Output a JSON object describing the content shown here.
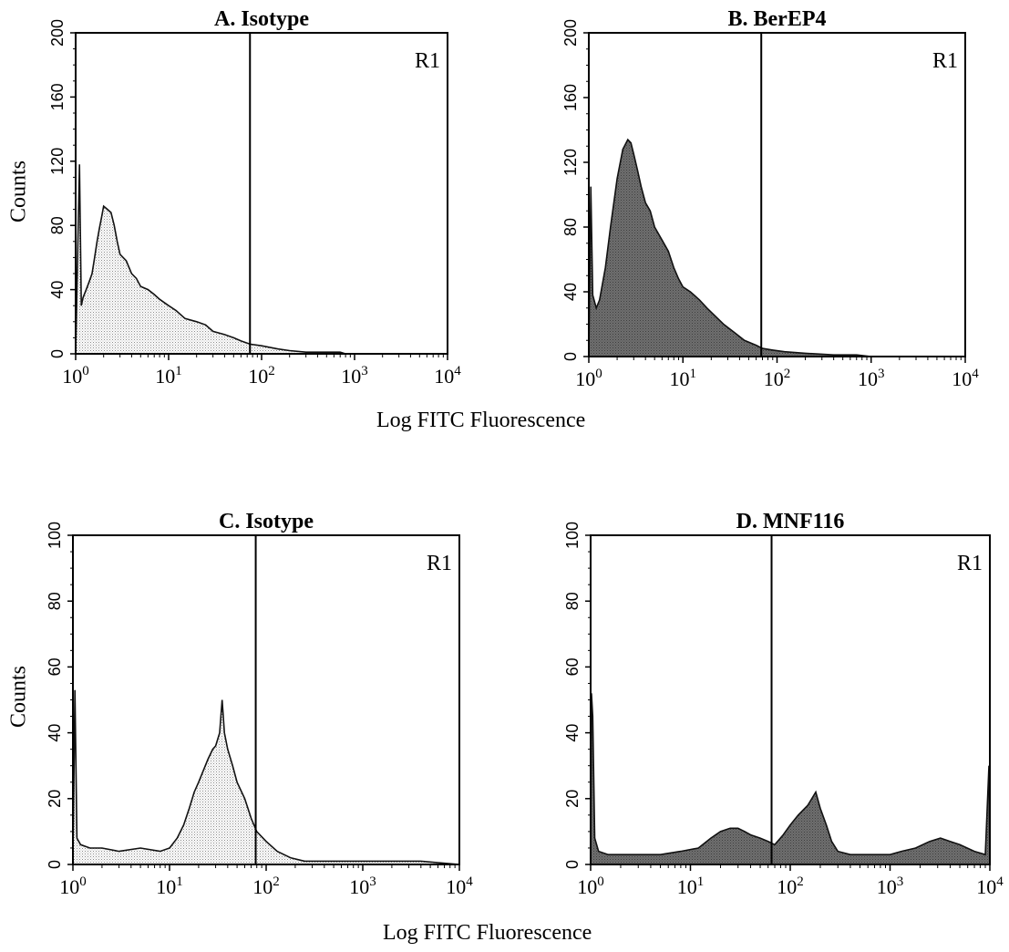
{
  "figure": {
    "xlabel_top": "Log FITC Fluorescence",
    "xlabel_bottom": "Log FITC Fluorescence"
  },
  "chart_data": [
    {
      "type": "area",
      "title": "A. Isotype",
      "ylabel": "Counts",
      "xlabel": "",
      "x_scale": "log",
      "xlim": [
        1,
        10000
      ],
      "ylim": [
        0,
        200
      ],
      "yticks": [
        0,
        40,
        80,
        120,
        160,
        200
      ],
      "xtick_labels": [
        "10^0",
        "10^1",
        "10^2",
        "10^3",
        "10^4"
      ],
      "region_label": "R1",
      "gate_x": 75,
      "fill": "light",
      "series": [
        {
          "x": [
            1.0,
            1.1,
            1.15,
            1.2,
            1.3,
            1.4,
            1.5,
            1.6,
            1.7,
            1.8,
            1.9,
            2.0,
            2.2,
            2.4,
            2.6,
            2.8,
            3.0,
            3.5,
            4.0,
            4.5,
            5.0,
            6.0,
            7.0,
            8.0,
            10,
            12,
            15,
            20,
            25,
            30,
            40,
            50,
            60,
            75,
            100,
            150,
            200,
            300,
            500,
            700,
            800,
            1000,
            2000,
            5000,
            10000
          ],
          "y": [
            0,
            118,
            30,
            35,
            40,
            45,
            50,
            60,
            70,
            78,
            85,
            92,
            90,
            88,
            80,
            70,
            62,
            58,
            50,
            47,
            42,
            40,
            37,
            34,
            30,
            27,
            22,
            20,
            18,
            14,
            12,
            10,
            8,
            6,
            5,
            3,
            2,
            1,
            1,
            1,
            0,
            0,
            0,
            0,
            0
          ]
        }
      ]
    },
    {
      "type": "area",
      "title": "B. BerEP4",
      "ylabel": "",
      "xlabel": "",
      "x_scale": "log",
      "xlim": [
        1,
        10000
      ],
      "ylim": [
        0,
        200
      ],
      "yticks": [
        0,
        40,
        80,
        120,
        160,
        200
      ],
      "xtick_labels": [
        "10^0",
        "10^1",
        "10^2",
        "10^3",
        "10^4"
      ],
      "region_label": "R1",
      "gate_x": 68,
      "fill": "dark",
      "series": [
        {
          "x": [
            1.0,
            1.05,
            1.1,
            1.2,
            1.3,
            1.5,
            1.7,
            2.0,
            2.3,
            2.6,
            2.8,
            3.0,
            3.3,
            3.6,
            4.0,
            4.5,
            5.0,
            6.0,
            7.0,
            8.0,
            9.0,
            10,
            12,
            15,
            18,
            22,
            27,
            35,
            45,
            60,
            70,
            90,
            120,
            200,
            400,
            700,
            1000,
            2000,
            10000
          ],
          "y": [
            0,
            105,
            38,
            30,
            35,
            55,
            80,
            110,
            128,
            134,
            132,
            125,
            115,
            105,
            95,
            90,
            80,
            72,
            65,
            55,
            48,
            43,
            40,
            35,
            30,
            25,
            20,
            15,
            10,
            7,
            5,
            4,
            3,
            2,
            1,
            1,
            0,
            0,
            0
          ]
        }
      ]
    },
    {
      "type": "area",
      "title": "C. Isotype",
      "ylabel": "Counts",
      "xlabel": "",
      "x_scale": "log",
      "xlim": [
        1,
        10000
      ],
      "ylim": [
        0,
        100
      ],
      "yticks": [
        0,
        20,
        40,
        60,
        80,
        100
      ],
      "xtick_labels": [
        "10^0",
        "10^1",
        "10^2",
        "10^3",
        "10^4"
      ],
      "region_label": "R1",
      "gate_x": 78,
      "fill": "light",
      "series": [
        {
          "x": [
            1.0,
            1.05,
            1.1,
            1.2,
            1.5,
            2.0,
            3.0,
            5.0,
            8.0,
            10,
            12,
            14,
            16,
            18,
            20,
            22,
            25,
            28,
            30,
            33,
            35,
            37,
            40,
            45,
            50,
            60,
            70,
            80,
            100,
            130,
            180,
            250,
            400,
            700,
            1000,
            2000,
            4000,
            10000
          ],
          "y": [
            0,
            53,
            8,
            6,
            5,
            5,
            4,
            5,
            4,
            5,
            8,
            12,
            17,
            22,
            25,
            28,
            32,
            35,
            36,
            40,
            50,
            40,
            35,
            30,
            25,
            20,
            14,
            10,
            7,
            4,
            2,
            1,
            1,
            1,
            1,
            1,
            1,
            0
          ]
        }
      ]
    },
    {
      "type": "area",
      "title": "D. MNF116",
      "ylabel": "",
      "xlabel": "",
      "x_scale": "log",
      "xlim": [
        1,
        10000
      ],
      "ylim": [
        0,
        100
      ],
      "yticks": [
        0,
        20,
        40,
        60,
        80,
        100
      ],
      "xtick_labels": [
        "10^0",
        "10^1",
        "10^2",
        "10^3",
        "10^4"
      ],
      "region_label": "R1",
      "gate_x": 65,
      "fill": "dark",
      "series": [
        {
          "x": [
            1.0,
            1.02,
            1.05,
            1.1,
            1.2,
            1.5,
            2.0,
            3.0,
            5.0,
            8.0,
            12,
            16,
            20,
            25,
            30,
            35,
            40,
            50,
            60,
            70,
            85,
            100,
            120,
            150,
            180,
            200,
            230,
            260,
            300,
            400,
            600,
            800,
            1000,
            1300,
            1800,
            2500,
            3200,
            4000,
            5000,
            7000,
            9000,
            9800,
            10000
          ],
          "y": [
            0,
            52,
            45,
            8,
            4,
            3,
            3,
            3,
            3,
            4,
            5,
            8,
            10,
            11,
            11,
            10,
            9,
            8,
            7,
            6,
            9,
            12,
            15,
            18,
            22,
            17,
            12,
            7,
            4,
            3,
            3,
            3,
            3,
            4,
            5,
            7,
            8,
            7,
            6,
            4,
            3,
            30,
            0
          ]
        }
      ]
    }
  ]
}
